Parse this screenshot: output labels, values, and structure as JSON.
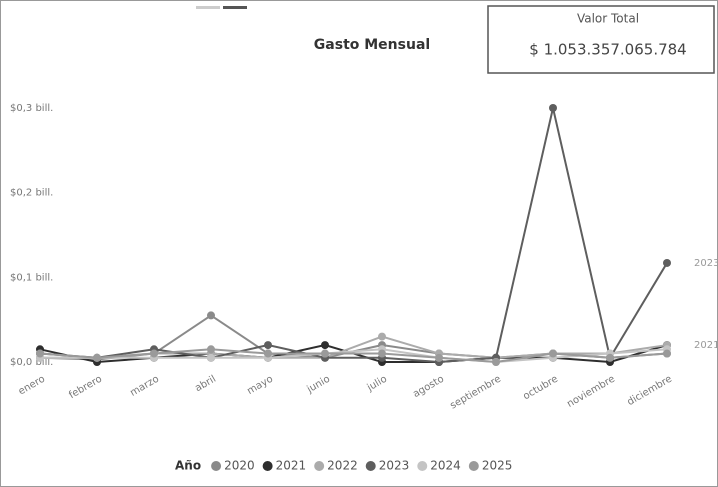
{
  "chart_data": {
    "type": "line",
    "title": "Gasto Mensual",
    "categories": [
      "enero",
      "febrero",
      "marzo",
      "abril",
      "mayo",
      "junio",
      "julio",
      "agosto",
      "septiembre",
      "octubre",
      "noviembre",
      "diciembre"
    ],
    "series": [
      {
        "name": "2020",
        "color": "#8a8a8a",
        "values": [
          0.005,
          0.003,
          0.01,
          0.055,
          0.01,
          0.005,
          0.02,
          0.01,
          0.005,
          0.01,
          0.005,
          0.01
        ]
      },
      {
        "name": "2021",
        "color": "#2e2e2e",
        "values": [
          0.015,
          0.0,
          0.005,
          0.01,
          0.005,
          0.02,
          0.0,
          0.0,
          0.005,
          0.005,
          0.0,
          0.02
        ]
      },
      {
        "name": "2022",
        "color": "#ababab",
        "values": [
          0.005,
          0.005,
          0.01,
          0.01,
          0.005,
          0.005,
          0.03,
          0.01,
          0.005,
          0.01,
          0.01,
          0.02
        ]
      },
      {
        "name": "2023",
        "color": "#5e5e5e",
        "values": [
          0.01,
          0.005,
          0.015,
          0.005,
          0.02,
          0.005,
          0.005,
          0.0,
          0.005,
          0.3,
          0.005,
          0.117
        ]
      },
      {
        "name": "2024",
        "color": "#c4c4c4",
        "values": [
          0.005,
          0.005,
          0.005,
          0.005,
          0.005,
          0.01,
          0.015,
          0.005,
          0.0,
          0.005,
          0.01,
          0.015
        ]
      },
      {
        "name": "2025",
        "color": "#9a9a9a",
        "values": [
          0.01,
          0.005,
          0.01,
          0.015,
          0.01,
          0.01,
          0.01,
          0.005,
          0.0,
          0.01,
          0.005,
          0.01
        ]
      }
    ],
    "ylim": [
      0,
      0.3
    ],
    "yticks": [
      {
        "value": 0,
        "label": "$0,0 bill."
      },
      {
        "value": 0.1,
        "label": "$0,1 bill."
      },
      {
        "value": 0.2,
        "label": "$0,2 bill."
      },
      {
        "value": 0.3,
        "label": "$0,3 bill."
      }
    ],
    "grid": false,
    "legend_title": "Año",
    "legend": "bottom"
  },
  "card": {
    "label": "Valor Total",
    "value": "$ 1.053.357.065.784"
  }
}
